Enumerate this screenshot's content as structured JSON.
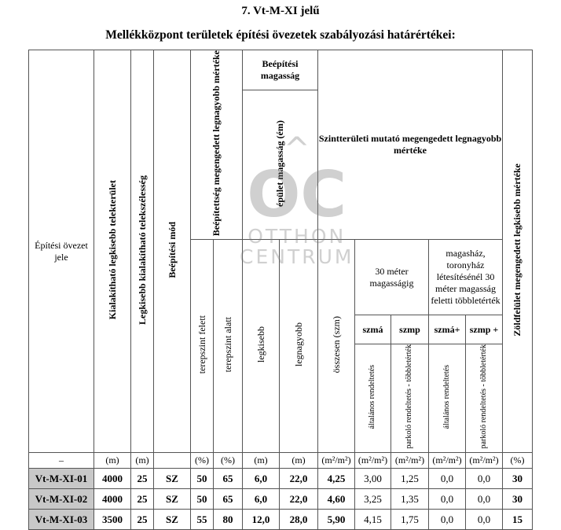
{
  "title": "7.   Vt-M-XI jelű",
  "subtitle": "Mellékközpont területek építési övezetek szabályozási határértékei:",
  "headers": {
    "zone": "Építési övezet jele",
    "min_area": "Kialakítható legkisebb telekterület",
    "min_width": "Legkisebb kialakítható telekszélesség",
    "mode": "Beépítési mód",
    "coverage": "Beépítettség megengedett legnagyobb mértéke",
    "above": "terepszint felett",
    "below": "terepszint alatt",
    "height_group": "Beépítési magasság",
    "building_height": "épület magasság (ém)",
    "h_min": "legkisebb",
    "h_max": "legnagyobb",
    "floor_ratio": "Szintterületi mutató megengedett legnagyobb mértéke",
    "total": "összesen (szm)",
    "up_to_30": "30 méter magasságig",
    "above_30": "magasház, toronyház létesítésénél 30 méter magasság feletti többletérték",
    "szma": "szmá",
    "szmp": "szmp",
    "szma_plus": "szmá+",
    "szmp_plus": "szmp +",
    "general": "általános rendeltetés",
    "parking": "parkoló rendeltetés - többletérték",
    "green": "Zöldfelület megengedett legkisebb mértéke"
  },
  "units": [
    "–",
    "(m)",
    "(m)",
    "",
    "(%)",
    "(%)",
    "(m)",
    "(m)",
    "(m²/m²)",
    "(m²/m²)",
    "(m²/m²)",
    "(m²/m²)",
    "(m²/m²)",
    "(%)"
  ],
  "rows": [
    [
      "Vt-M-XI-01",
      "4000",
      "25",
      "SZ",
      "50",
      "65",
      "6,0",
      "22,0",
      "4,25",
      "3,00",
      "1,25",
      "0,0",
      "0,0",
      "30"
    ],
    [
      "Vt-M-XI-02",
      "4000",
      "25",
      "SZ",
      "50",
      "65",
      "6,0",
      "22,0",
      "4,60",
      "3,25",
      "1,35",
      "0,0",
      "0,0",
      "30"
    ],
    [
      "Vt-M-XI-03",
      "3500",
      "25",
      "SZ",
      "55",
      "80",
      "12,0",
      "28,0",
      "5,90",
      "4,15",
      "1,75",
      "0,0",
      "0,0",
      "15"
    ]
  ],
  "watermark": "OC OTTHON CENTRUM"
}
